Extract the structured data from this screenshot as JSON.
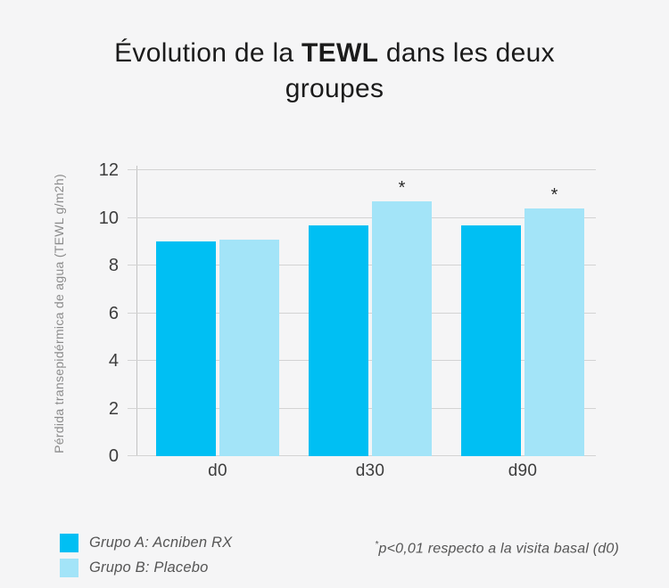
{
  "page": {
    "background": "#f5f5f6"
  },
  "title": {
    "line1_pre": "Évolution de la ",
    "line1_bold": "TEWL",
    "line1_post": " dans les deux",
    "line2": "groupes"
  },
  "footnote": {
    "marker": "*",
    "text": "p<0,01 respecto a la visita basal (d0)"
  },
  "chart_data": {
    "type": "bar",
    "title": "Évolution de la TEWL dans les deux groupes",
    "categories": [
      "d0",
      "d30",
      "d90"
    ],
    "series": [
      {
        "name": "Grupo A: Acniben RX",
        "color": "#00bff3",
        "values": [
          9.0,
          9.7,
          9.7
        ]
      },
      {
        "name": "Grupo B: Placebo",
        "color": "#a3e4f8",
        "values": [
          9.1,
          10.7,
          10.4
        ]
      }
    ],
    "significance": [
      {
        "category": "d30",
        "series": "Grupo B: Placebo",
        "marker": "*"
      },
      {
        "category": "d90",
        "series": "Grupo B: Placebo",
        "marker": "*"
      }
    ],
    "xlabel": "",
    "ylabel": "Pérdida transepidérmica de agua (TEWL g/m2h)",
    "ylim": [
      0,
      12
    ],
    "ytick_step": 2,
    "grid": true,
    "legend_position": "bottom-left"
  }
}
